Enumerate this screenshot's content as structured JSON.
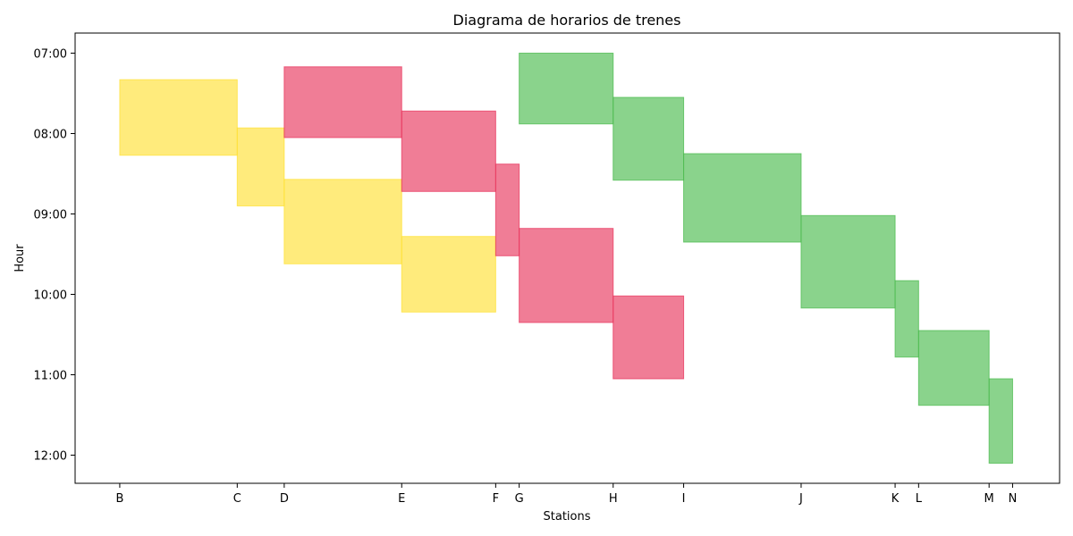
{
  "chart_data": {
    "type": "bar",
    "title": "Diagrama de horarios de trenes",
    "xlabel": "Stations",
    "ylabel": "Hour",
    "stations": [
      {
        "name": "B",
        "pos": 0
      },
      {
        "name": "C",
        "pos": 2.5
      },
      {
        "name": "D",
        "pos": 3.5
      },
      {
        "name": "E",
        "pos": 6
      },
      {
        "name": "F",
        "pos": 8
      },
      {
        "name": "G",
        "pos": 8.5
      },
      {
        "name": "H",
        "pos": 10.5
      },
      {
        "name": "I",
        "pos": 12
      },
      {
        "name": "J",
        "pos": 14.5
      },
      {
        "name": "K",
        "pos": 16.5
      },
      {
        "name": "L",
        "pos": 17
      },
      {
        "name": "M",
        "pos": 18.5
      },
      {
        "name": "N",
        "pos": 19
      }
    ],
    "y_ticks": [
      "07:00",
      "08:00",
      "09:00",
      "10:00",
      "11:00",
      "12:00"
    ],
    "y_tick_values": [
      7,
      8,
      9,
      10,
      11,
      12
    ],
    "ylim": [
      12.35,
      6.75
    ],
    "xlim": [
      -0.95,
      20
    ],
    "grid": false,
    "series": [
      {
        "color": "#ffe135",
        "segments": [
          {
            "from": "B",
            "to": "C",
            "start": 7.33,
            "end": 8.27
          },
          {
            "from": "C",
            "to": "D",
            "start": 7.93,
            "end": 8.9
          },
          {
            "from": "D",
            "to": "E",
            "start": 8.57,
            "end": 9.62
          },
          {
            "from": "E",
            "to": "F",
            "start": 9.28,
            "end": 10.22
          }
        ]
      },
      {
        "color": "#e8375e",
        "segments": [
          {
            "from": "D",
            "to": "E",
            "start": 7.17,
            "end": 8.05
          },
          {
            "from": "E",
            "to": "F",
            "start": 7.72,
            "end": 8.72
          },
          {
            "from": "F",
            "to": "G",
            "start": 8.38,
            "end": 9.52
          },
          {
            "from": "G",
            "to": "H",
            "start": 9.18,
            "end": 10.35
          },
          {
            "from": "H",
            "to": "I",
            "start": 10.02,
            "end": 11.05
          }
        ]
      },
      {
        "color": "#4cbb4f",
        "segments": [
          {
            "from": "G",
            "to": "H",
            "start": 7.0,
            "end": 7.88
          },
          {
            "from": "H",
            "to": "I",
            "start": 7.55,
            "end": 8.58
          },
          {
            "from": "I",
            "to": "J",
            "start": 8.25,
            "end": 9.35
          },
          {
            "from": "J",
            "to": "K",
            "start": 9.02,
            "end": 10.17
          },
          {
            "from": "K",
            "to": "L",
            "start": 9.83,
            "end": 10.78
          },
          {
            "from": "L",
            "to": "M",
            "start": 10.45,
            "end": 11.38
          },
          {
            "from": "M",
            "to": "N",
            "start": 11.05,
            "end": 12.1
          }
        ]
      }
    ]
  }
}
